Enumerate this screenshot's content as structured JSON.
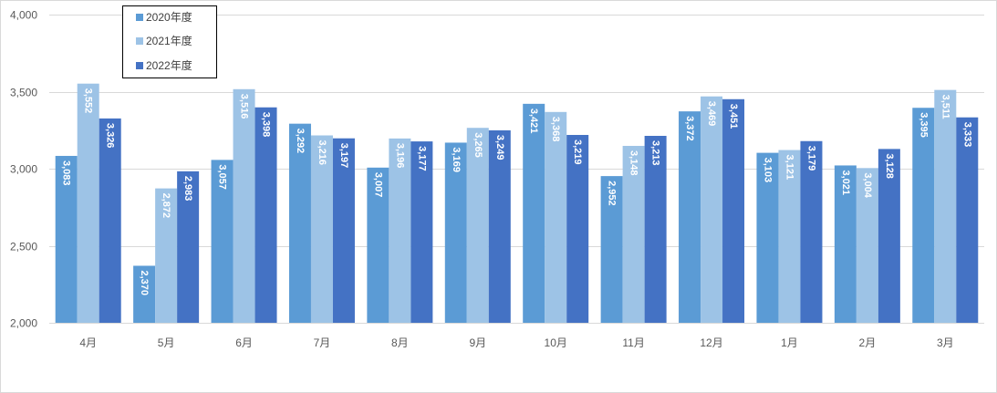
{
  "chart_data": {
    "type": "bar",
    "categories": [
      "4月",
      "5月",
      "6月",
      "7月",
      "8月",
      "9月",
      "10月",
      "11月",
      "12月",
      "1月",
      "2月",
      "3月"
    ],
    "series": [
      {
        "name": "2020年度",
        "color": "#5b9bd5",
        "values": [
          3083,
          2370,
          3057,
          3292,
          3007,
          3169,
          3421,
          2952,
          3372,
          3103,
          3021,
          3395
        ]
      },
      {
        "name": "2021年度",
        "color": "#9dc3e6",
        "values": [
          3552,
          2872,
          3516,
          3216,
          3196,
          3265,
          3368,
          3148,
          3469,
          3121,
          3004,
          3511
        ]
      },
      {
        "name": "2022年度",
        "color": "#4472c4",
        "values": [
          3326,
          2983,
          3398,
          3197,
          3177,
          3249,
          3219,
          3213,
          3451,
          3179,
          3128,
          3333
        ]
      }
    ],
    "ylim": [
      2000,
      4000
    ],
    "yticks": [
      2000,
      2500,
      3000,
      3500,
      4000
    ],
    "grid": true,
    "legend": "top-left",
    "data_labels": true
  }
}
